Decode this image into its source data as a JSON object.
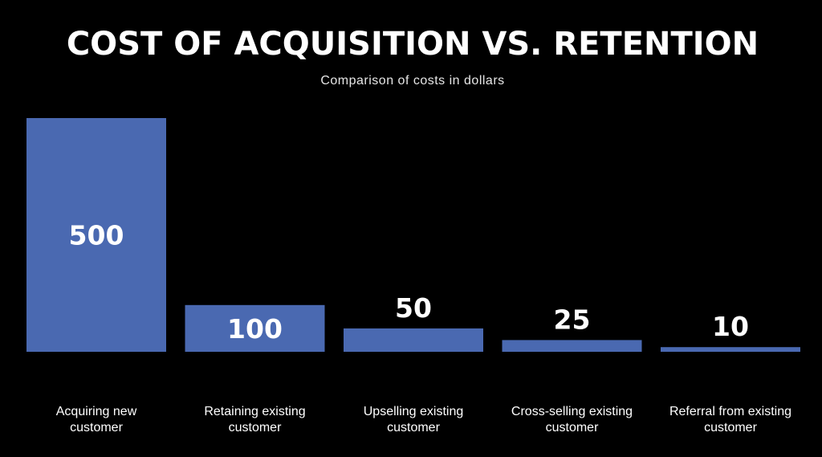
{
  "chart_data": {
    "type": "bar",
    "title": "COST OF ACQUISITION VS. RETENTION",
    "subtitle": "Comparison of costs in dollars",
    "categories": [
      "Acquiring new customer",
      "Retaining existing customer",
      "Upselling existing customer",
      "Cross-selling existing customer",
      "Referral from existing customer"
    ],
    "category_lines": [
      [
        "Acquiring new",
        "customer"
      ],
      [
        "Retaining existing",
        "customer"
      ],
      [
        "Upselling existing",
        "customer"
      ],
      [
        "Cross-selling existing",
        "customer"
      ],
      [
        "Referral from existing",
        "customer"
      ]
    ],
    "values": [
      500,
      100,
      50,
      25,
      10
    ],
    "value_labels": [
      "500",
      "100",
      "50",
      "25",
      "10"
    ],
    "ylim": [
      0,
      500
    ],
    "grid": false,
    "bar_color": "#4a69b1",
    "background_color": "#000000",
    "text_color": "#ffffff"
  }
}
